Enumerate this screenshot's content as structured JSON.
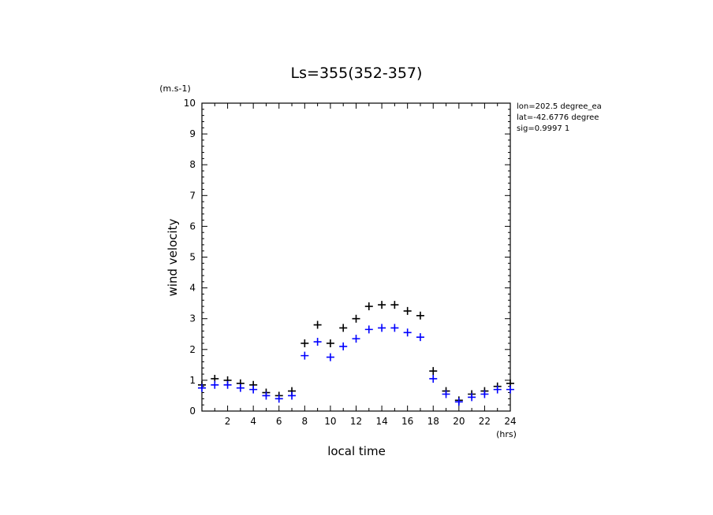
{
  "chart_data": {
    "type": "scatter",
    "title": "Ls=355(352-357)",
    "xlabel": "local time",
    "ylabel": "wind velocity",
    "xunit": "(hrs)",
    "yunit": "(m.s-1)",
    "xlim": [
      0,
      24
    ],
    "ylim": [
      0,
      10
    ],
    "xticks": [
      2,
      4,
      6,
      8,
      10,
      12,
      14,
      16,
      18,
      20,
      22,
      24
    ],
    "yticks": [
      0,
      1,
      2,
      3,
      4,
      5,
      6,
      7,
      8,
      9,
      10
    ],
    "grid": false,
    "annotations": [
      "lon=202.5 degree_ea",
      "lat=-42.6776 degree",
      "sig=0.9997 1"
    ],
    "series": [
      {
        "color": "#000000",
        "marker": "+",
        "x": [
          0,
          1,
          2,
          3,
          4,
          5,
          6,
          7,
          8,
          9,
          10,
          11,
          12,
          13,
          14,
          15,
          16,
          17,
          18,
          19,
          20,
          21,
          22,
          23,
          24
        ],
        "y": [
          0.85,
          1.05,
          1.0,
          0.9,
          0.85,
          0.6,
          0.5,
          0.65,
          2.2,
          2.8,
          2.2,
          2.7,
          3.0,
          3.4,
          3.45,
          3.45,
          3.25,
          3.1,
          1.3,
          0.65,
          0.35,
          0.55,
          0.65,
          0.8,
          0.9
        ]
      },
      {
        "color": "#0000ff",
        "marker": "+",
        "x": [
          0,
          1,
          2,
          3,
          4,
          5,
          6,
          7,
          8,
          9,
          10,
          11,
          12,
          13,
          14,
          15,
          16,
          17,
          18,
          19,
          20,
          21,
          22,
          23,
          24
        ],
        "y": [
          0.75,
          0.85,
          0.85,
          0.75,
          0.7,
          0.5,
          0.4,
          0.5,
          1.8,
          2.25,
          1.75,
          2.1,
          2.35,
          2.65,
          2.7,
          2.7,
          2.55,
          2.4,
          1.05,
          0.55,
          0.3,
          0.45,
          0.55,
          0.7,
          0.7
        ]
      }
    ]
  }
}
